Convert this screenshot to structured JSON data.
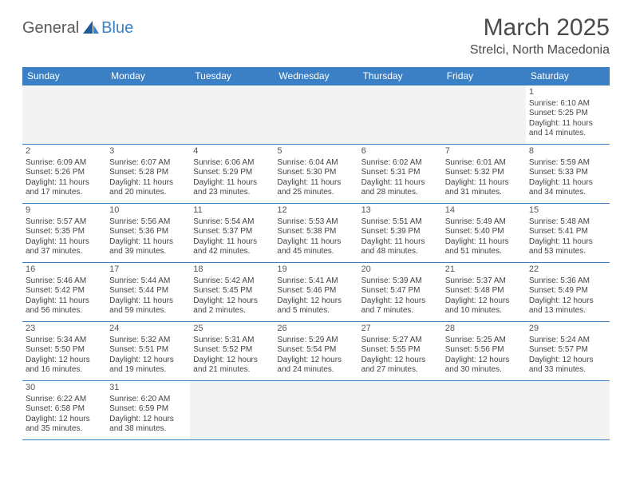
{
  "logo": {
    "text1": "General",
    "text2": "Blue"
  },
  "title": "March 2025",
  "location": "Strelci, North Macedonia",
  "colors": {
    "accent": "#3b7fc4",
    "text": "#444444",
    "inactive_bg": "#f3f3f3"
  },
  "daynames": [
    "Sunday",
    "Monday",
    "Tuesday",
    "Wednesday",
    "Thursday",
    "Friday",
    "Saturday"
  ],
  "weeks": [
    [
      {
        "num": "",
        "sunrise": "",
        "sunset": "",
        "daylight": "",
        "inactive": true
      },
      {
        "num": "",
        "sunrise": "",
        "sunset": "",
        "daylight": "",
        "inactive": true
      },
      {
        "num": "",
        "sunrise": "",
        "sunset": "",
        "daylight": "",
        "inactive": true
      },
      {
        "num": "",
        "sunrise": "",
        "sunset": "",
        "daylight": "",
        "inactive": true
      },
      {
        "num": "",
        "sunrise": "",
        "sunset": "",
        "daylight": "",
        "inactive": true
      },
      {
        "num": "",
        "sunrise": "",
        "sunset": "",
        "daylight": "",
        "inactive": true
      },
      {
        "num": "1",
        "sunrise": "Sunrise: 6:10 AM",
        "sunset": "Sunset: 5:25 PM",
        "daylight": "Daylight: 11 hours and 14 minutes."
      }
    ],
    [
      {
        "num": "2",
        "sunrise": "Sunrise: 6:09 AM",
        "sunset": "Sunset: 5:26 PM",
        "daylight": "Daylight: 11 hours and 17 minutes."
      },
      {
        "num": "3",
        "sunrise": "Sunrise: 6:07 AM",
        "sunset": "Sunset: 5:28 PM",
        "daylight": "Daylight: 11 hours and 20 minutes."
      },
      {
        "num": "4",
        "sunrise": "Sunrise: 6:06 AM",
        "sunset": "Sunset: 5:29 PM",
        "daylight": "Daylight: 11 hours and 23 minutes."
      },
      {
        "num": "5",
        "sunrise": "Sunrise: 6:04 AM",
        "sunset": "Sunset: 5:30 PM",
        "daylight": "Daylight: 11 hours and 25 minutes."
      },
      {
        "num": "6",
        "sunrise": "Sunrise: 6:02 AM",
        "sunset": "Sunset: 5:31 PM",
        "daylight": "Daylight: 11 hours and 28 minutes."
      },
      {
        "num": "7",
        "sunrise": "Sunrise: 6:01 AM",
        "sunset": "Sunset: 5:32 PM",
        "daylight": "Daylight: 11 hours and 31 minutes."
      },
      {
        "num": "8",
        "sunrise": "Sunrise: 5:59 AM",
        "sunset": "Sunset: 5:33 PM",
        "daylight": "Daylight: 11 hours and 34 minutes."
      }
    ],
    [
      {
        "num": "9",
        "sunrise": "Sunrise: 5:57 AM",
        "sunset": "Sunset: 5:35 PM",
        "daylight": "Daylight: 11 hours and 37 minutes."
      },
      {
        "num": "10",
        "sunrise": "Sunrise: 5:56 AM",
        "sunset": "Sunset: 5:36 PM",
        "daylight": "Daylight: 11 hours and 39 minutes."
      },
      {
        "num": "11",
        "sunrise": "Sunrise: 5:54 AM",
        "sunset": "Sunset: 5:37 PM",
        "daylight": "Daylight: 11 hours and 42 minutes."
      },
      {
        "num": "12",
        "sunrise": "Sunrise: 5:53 AM",
        "sunset": "Sunset: 5:38 PM",
        "daylight": "Daylight: 11 hours and 45 minutes."
      },
      {
        "num": "13",
        "sunrise": "Sunrise: 5:51 AM",
        "sunset": "Sunset: 5:39 PM",
        "daylight": "Daylight: 11 hours and 48 minutes."
      },
      {
        "num": "14",
        "sunrise": "Sunrise: 5:49 AM",
        "sunset": "Sunset: 5:40 PM",
        "daylight": "Daylight: 11 hours and 51 minutes."
      },
      {
        "num": "15",
        "sunrise": "Sunrise: 5:48 AM",
        "sunset": "Sunset: 5:41 PM",
        "daylight": "Daylight: 11 hours and 53 minutes."
      }
    ],
    [
      {
        "num": "16",
        "sunrise": "Sunrise: 5:46 AM",
        "sunset": "Sunset: 5:42 PM",
        "daylight": "Daylight: 11 hours and 56 minutes."
      },
      {
        "num": "17",
        "sunrise": "Sunrise: 5:44 AM",
        "sunset": "Sunset: 5:44 PM",
        "daylight": "Daylight: 11 hours and 59 minutes."
      },
      {
        "num": "18",
        "sunrise": "Sunrise: 5:42 AM",
        "sunset": "Sunset: 5:45 PM",
        "daylight": "Daylight: 12 hours and 2 minutes."
      },
      {
        "num": "19",
        "sunrise": "Sunrise: 5:41 AM",
        "sunset": "Sunset: 5:46 PM",
        "daylight": "Daylight: 12 hours and 5 minutes."
      },
      {
        "num": "20",
        "sunrise": "Sunrise: 5:39 AM",
        "sunset": "Sunset: 5:47 PM",
        "daylight": "Daylight: 12 hours and 7 minutes."
      },
      {
        "num": "21",
        "sunrise": "Sunrise: 5:37 AM",
        "sunset": "Sunset: 5:48 PM",
        "daylight": "Daylight: 12 hours and 10 minutes."
      },
      {
        "num": "22",
        "sunrise": "Sunrise: 5:36 AM",
        "sunset": "Sunset: 5:49 PM",
        "daylight": "Daylight: 12 hours and 13 minutes."
      }
    ],
    [
      {
        "num": "23",
        "sunrise": "Sunrise: 5:34 AM",
        "sunset": "Sunset: 5:50 PM",
        "daylight": "Daylight: 12 hours and 16 minutes."
      },
      {
        "num": "24",
        "sunrise": "Sunrise: 5:32 AM",
        "sunset": "Sunset: 5:51 PM",
        "daylight": "Daylight: 12 hours and 19 minutes."
      },
      {
        "num": "25",
        "sunrise": "Sunrise: 5:31 AM",
        "sunset": "Sunset: 5:52 PM",
        "daylight": "Daylight: 12 hours and 21 minutes."
      },
      {
        "num": "26",
        "sunrise": "Sunrise: 5:29 AM",
        "sunset": "Sunset: 5:54 PM",
        "daylight": "Daylight: 12 hours and 24 minutes."
      },
      {
        "num": "27",
        "sunrise": "Sunrise: 5:27 AM",
        "sunset": "Sunset: 5:55 PM",
        "daylight": "Daylight: 12 hours and 27 minutes."
      },
      {
        "num": "28",
        "sunrise": "Sunrise: 5:25 AM",
        "sunset": "Sunset: 5:56 PM",
        "daylight": "Daylight: 12 hours and 30 minutes."
      },
      {
        "num": "29",
        "sunrise": "Sunrise: 5:24 AM",
        "sunset": "Sunset: 5:57 PM",
        "daylight": "Daylight: 12 hours and 33 minutes."
      }
    ],
    [
      {
        "num": "30",
        "sunrise": "Sunrise: 6:22 AM",
        "sunset": "Sunset: 6:58 PM",
        "daylight": "Daylight: 12 hours and 35 minutes."
      },
      {
        "num": "31",
        "sunrise": "Sunrise: 6:20 AM",
        "sunset": "Sunset: 6:59 PM",
        "daylight": "Daylight: 12 hours and 38 minutes."
      },
      {
        "num": "",
        "sunrise": "",
        "sunset": "",
        "daylight": "",
        "inactive": true
      },
      {
        "num": "",
        "sunrise": "",
        "sunset": "",
        "daylight": "",
        "inactive": true
      },
      {
        "num": "",
        "sunrise": "",
        "sunset": "",
        "daylight": "",
        "inactive": true
      },
      {
        "num": "",
        "sunrise": "",
        "sunset": "",
        "daylight": "",
        "inactive": true
      },
      {
        "num": "",
        "sunrise": "",
        "sunset": "",
        "daylight": "",
        "inactive": true
      }
    ]
  ]
}
